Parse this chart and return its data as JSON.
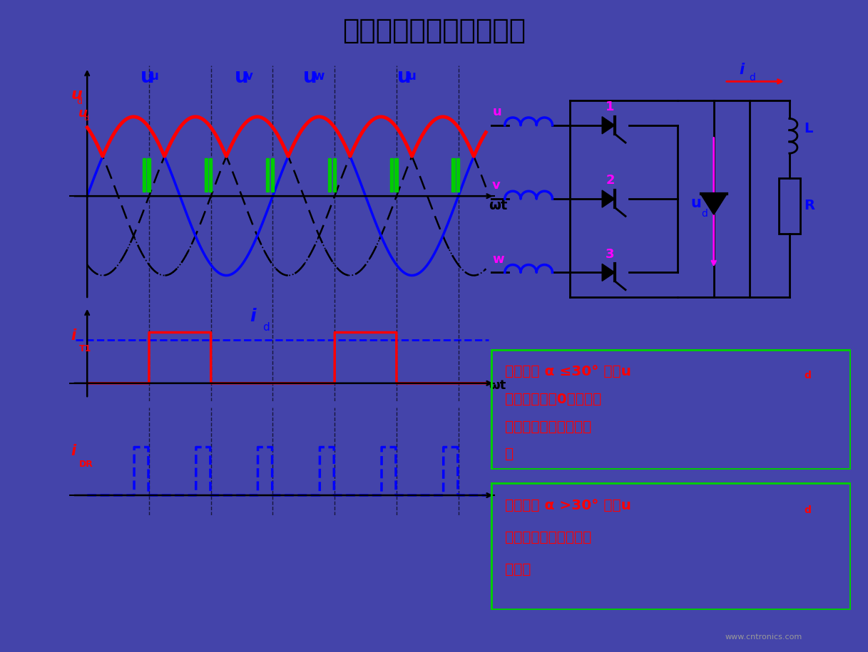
{
  "title": "电感性负载加续流二极管",
  "title_bg": "#9999bb",
  "outer_bg": "#ffffff",
  "border_outer": "#333388",
  "inner_bg": "#ffffff",
  "color_red": "#ff0000",
  "color_blue": "#0000ff",
  "color_magenta": "#ff00ff",
  "color_green": "#00cc00",
  "color_black": "#000000",
  "box_bg": "#e8e0c8",
  "box_border": "#00cc00",
  "watermark": "www.cntronics.com",
  "box1_lines": [
    "电阻负载 α ≤30° 时，u",
    "连续且均大于0，续流二",
    "极管承受反压而不起作",
    "用"
  ],
  "box2_lines": [
    "电阻负载 α >30° 时，u",
    "断续，续流二极管起续",
    "流作用"
  ]
}
